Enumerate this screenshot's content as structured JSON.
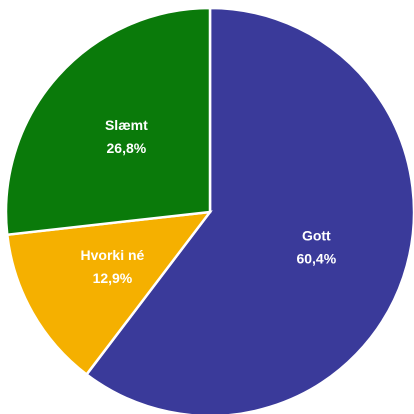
{
  "chart_data": {
    "type": "pie",
    "categories": [
      "Gott",
      "Hvorki né",
      "Slæmt"
    ],
    "values": [
      60.4,
      12.9,
      26.8
    ],
    "value_labels": [
      "60,4%",
      "12,9%",
      "26,8%"
    ],
    "colors": [
      "#3a3a9a",
      "#f5b000",
      "#0a7a0a"
    ]
  }
}
